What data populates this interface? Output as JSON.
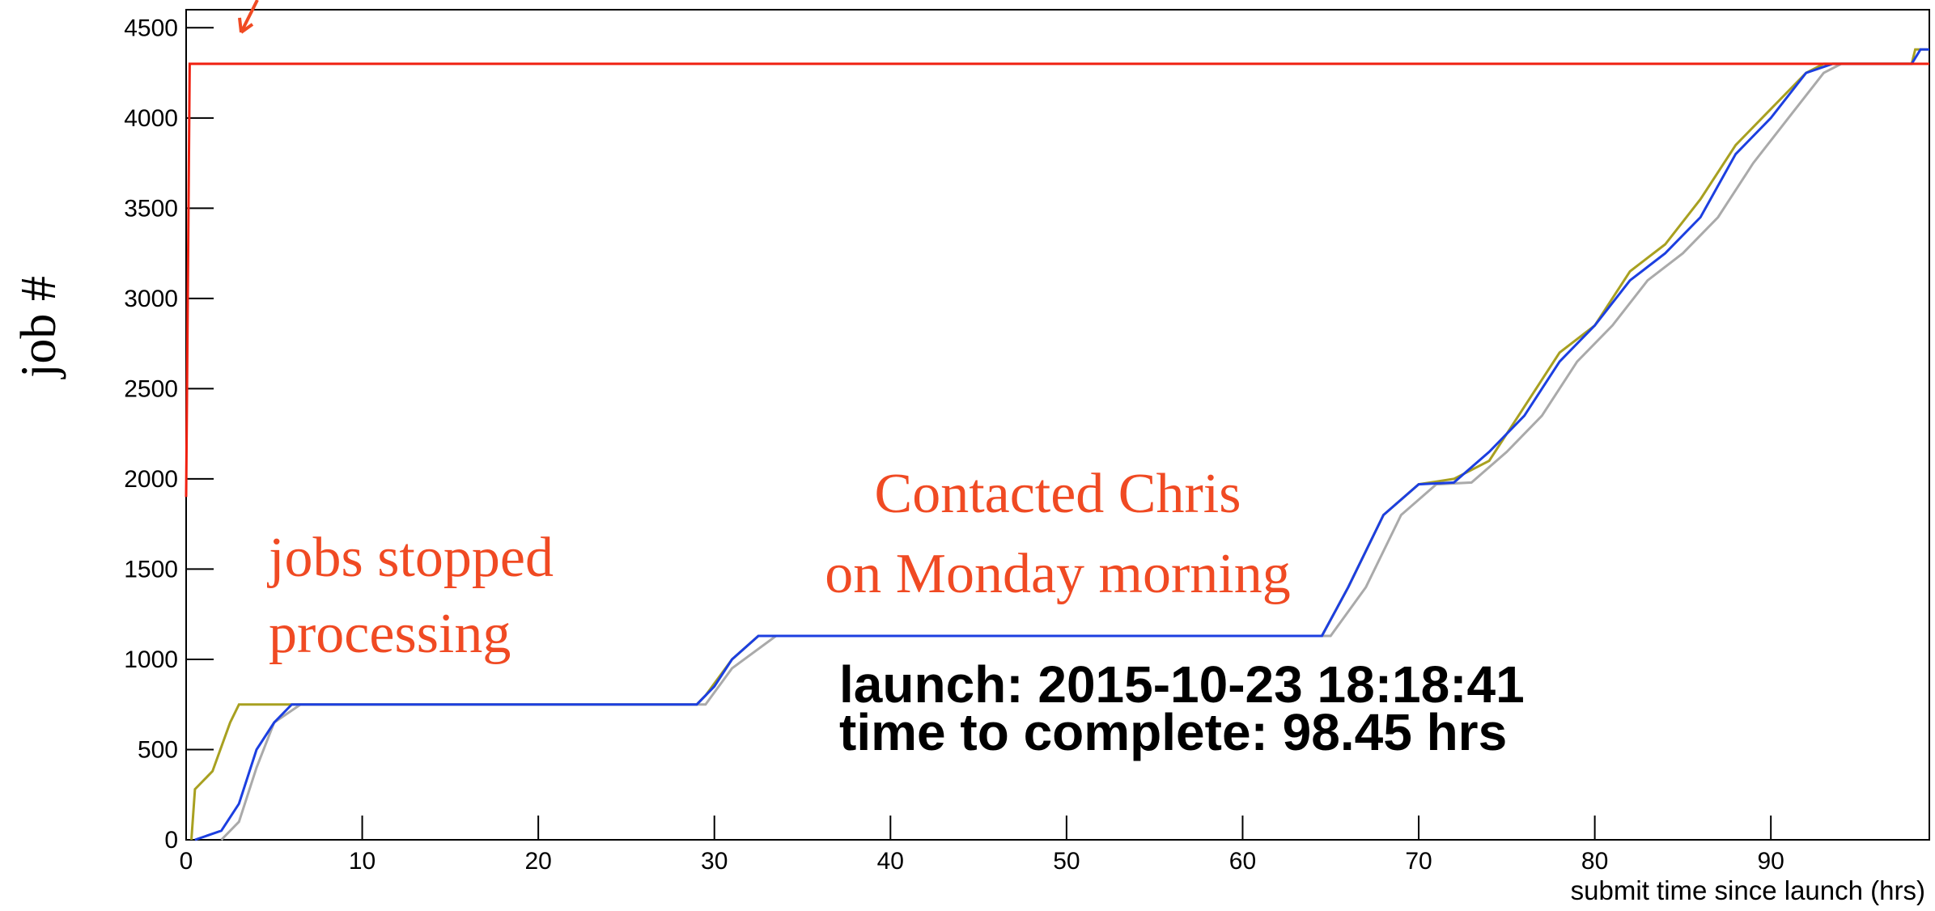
{
  "chart_data": {
    "type": "line",
    "y_label": "job #",
    "x_label": "submit time since launch (hrs)",
    "annotations": [
      "jobs stopped",
      "processing",
      "Contacted Chris",
      "on Monday morning",
      "launch: 2015-10-23 18:18:41",
      "time to complete: 98.45 hrs"
    ],
    "xlim": [
      0,
      99
    ],
    "ylim": [
      0,
      4600
    ],
    "xticks": [
      0,
      10,
      20,
      30,
      40,
      50,
      60,
      70,
      80,
      90
    ],
    "yticks": [
      0,
      500,
      1000,
      1500,
      2000,
      2500,
      3000,
      3500,
      4000,
      4500
    ],
    "series": [
      {
        "color": "#a8a020",
        "x": [
          0.3,
          0.5,
          1.5,
          2.5,
          3,
          29,
          29.5,
          31,
          32.5,
          64.5,
          66,
          68,
          70,
          72,
          74,
          76,
          78,
          80,
          82,
          84,
          86,
          88,
          90,
          92,
          93,
          98,
          98.2,
          99
        ],
        "values": [
          0,
          280,
          380,
          650,
          750,
          750,
          800,
          1000,
          1130,
          1130,
          1400,
          1800,
          1970,
          2000,
          2100,
          2400,
          2700,
          2850,
          3150,
          3300,
          3550,
          3850,
          4050,
          4250,
          4300,
          4300,
          4380,
          4380
        ]
      },
      {
        "color": "#aaaaaa",
        "x": [
          2,
          3,
          4,
          5,
          6.5,
          29.5,
          31,
          33.5,
          65,
          67,
          69,
          71,
          73,
          75,
          77,
          79,
          81,
          83,
          85,
          87,
          89,
          91,
          93,
          94,
          98
        ],
        "values": [
          0,
          100,
          400,
          650,
          750,
          750,
          950,
          1130,
          1130,
          1400,
          1800,
          1970,
          1980,
          2150,
          2350,
          2650,
          2850,
          3100,
          3250,
          3450,
          3750,
          4000,
          4250,
          4300,
          4300
        ]
      },
      {
        "color": "#1c3fe0",
        "x": [
          0.5,
          2,
          3,
          4,
          5,
          6,
          29,
          30,
          31,
          32.5,
          64.5,
          66,
          68,
          70,
          72,
          74,
          76,
          78,
          80,
          82,
          84,
          86,
          88,
          90,
          92,
          93.5,
          98,
          98.5,
          99
        ],
        "values": [
          0,
          50,
          200,
          500,
          650,
          750,
          750,
          850,
          1000,
          1130,
          1130,
          1400,
          1800,
          1970,
          1980,
          2150,
          2350,
          2650,
          2850,
          3100,
          3250,
          3450,
          3800,
          4000,
          4250,
          4300,
          4300,
          4380,
          4380
        ]
      },
      {
        "color": "#f02010",
        "x": [
          0,
          0.2,
          99
        ],
        "values": [
          1900,
          4300,
          4300
        ]
      }
    ]
  }
}
